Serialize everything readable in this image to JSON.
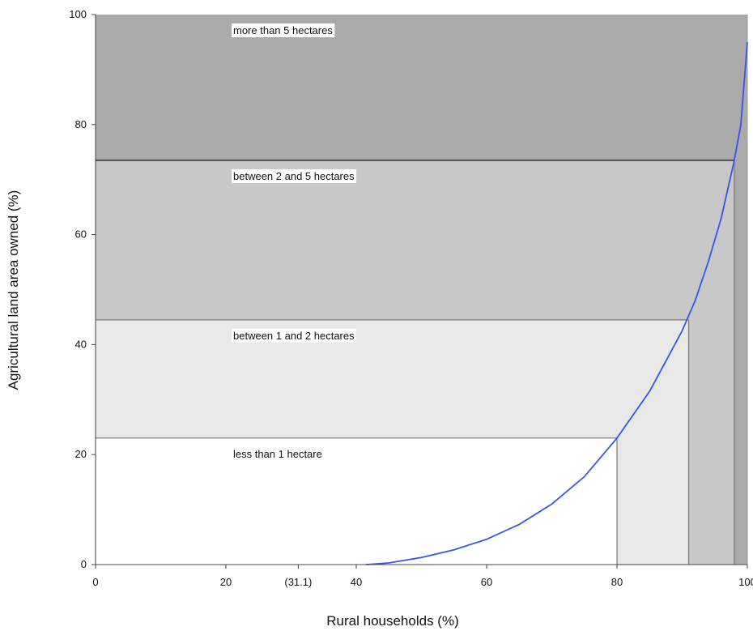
{
  "chart_data": {
    "type": "area",
    "title": "",
    "xlabel": "Rural households (%)",
    "ylabel": "Agricultural land area owned (%)",
    "xlim": [
      0,
      100
    ],
    "ylim": [
      0,
      100
    ],
    "x_ticks": [
      {
        "value": 0,
        "label": "0"
      },
      {
        "value": 20,
        "label": "20"
      },
      {
        "value": 31.1,
        "label": "(31.1)"
      },
      {
        "value": 40,
        "label": "40"
      },
      {
        "value": 60,
        "label": "60"
      },
      {
        "value": 80,
        "label": "80"
      },
      {
        "value": 100,
        "label": "100"
      }
    ],
    "y_ticks": [
      {
        "value": 0,
        "label": "0"
      },
      {
        "value": 20,
        "label": "20"
      },
      {
        "value": 40,
        "label": "40"
      },
      {
        "value": 60,
        "label": "60"
      },
      {
        "value": 80,
        "label": "80"
      },
      {
        "value": 100,
        "label": "100"
      }
    ],
    "bands": [
      {
        "label": "less than 1 hectare",
        "x_end": 80,
        "y_start": 0,
        "y_end": 23,
        "color": "#ffffff"
      },
      {
        "label": "between 1 and 2 hectares",
        "x_end": 91,
        "y_start": 23,
        "y_end": 44.5,
        "color": "#e8e8e8"
      },
      {
        "label": "between 2 and 5 hectares",
        "x_end": 98,
        "y_start": 44.5,
        "y_end": 73.5,
        "color": "#c8c8c8"
      },
      {
        "label": "more than 5 hectares",
        "x_end": 100,
        "y_start": 73.5,
        "y_end": 100,
        "color": "#aaaaaa"
      }
    ],
    "series": [
      {
        "type": "line",
        "color": "#3355ee",
        "x": [
          41.5,
          45,
          50,
          55,
          60,
          65,
          70,
          75,
          80,
          85,
          90,
          92,
          94,
          96,
          98,
          99,
          100
        ],
        "y": [
          0,
          0.3,
          1.3,
          2.7,
          4.6,
          7.3,
          11,
          16,
          23,
          31.5,
          42.5,
          48,
          55,
          63,
          73.5,
          80,
          95
        ]
      }
    ],
    "grid": false
  }
}
